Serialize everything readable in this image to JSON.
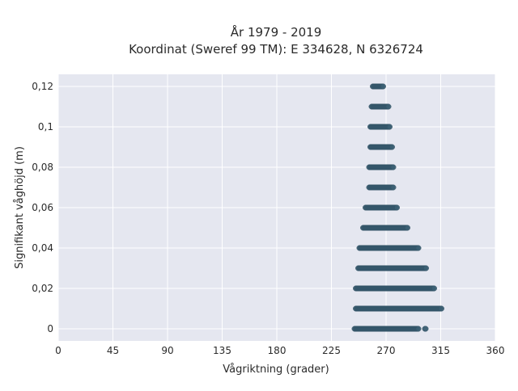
{
  "chart_data": {
    "type": "scatter",
    "title": "År 1979 - 2019",
    "subtitle": "Koordinat (Sweref 99 TM): E 334628, N 6326724",
    "xlabel": "Vågriktning (grader)",
    "ylabel": "Signifikant våghöjd (m)",
    "xlim": [
      0,
      360
    ],
    "ylim": [
      -0.006,
      0.126
    ],
    "xticks": [
      0,
      45,
      90,
      135,
      180,
      225,
      270,
      315,
      360
    ],
    "xtick_labels": [
      "0",
      "45",
      "90",
      "135",
      "180",
      "225",
      "270",
      "315",
      "360"
    ],
    "yticks": [
      0,
      0.02,
      0.04,
      0.06,
      0.08,
      0.1,
      0.12
    ],
    "ytick_labels": [
      "0",
      "0,02",
      "0,04",
      "0,06",
      "0,08",
      "0,1",
      "0,12"
    ],
    "grid": true,
    "background": "#e5e7f0",
    "marker_color": "#3b5f73",
    "series": [
      {
        "points": [
          {
            "height": 0.0,
            "direction_min": 244,
            "direction_max": 297
          },
          {
            "height": 0.0,
            "direction_min": 302,
            "direction_max": 303
          },
          {
            "height": 0.01,
            "direction_min": 245,
            "direction_max": 316
          },
          {
            "height": 0.02,
            "direction_min": 245,
            "direction_max": 310
          },
          {
            "height": 0.03,
            "direction_min": 247,
            "direction_max": 303
          },
          {
            "height": 0.04,
            "direction_min": 248,
            "direction_max": 297
          },
          {
            "height": 0.05,
            "direction_min": 251,
            "direction_max": 288
          },
          {
            "height": 0.06,
            "direction_min": 253,
            "direction_max": 279
          },
          {
            "height": 0.07,
            "direction_min": 256,
            "direction_max": 276
          },
          {
            "height": 0.08,
            "direction_min": 256,
            "direction_max": 276
          },
          {
            "height": 0.09,
            "direction_min": 257,
            "direction_max": 275
          },
          {
            "height": 0.1,
            "direction_min": 257,
            "direction_max": 273
          },
          {
            "height": 0.11,
            "direction_min": 258,
            "direction_max": 272
          },
          {
            "height": 0.12,
            "direction_min": 259,
            "direction_max": 268
          }
        ]
      }
    ]
  }
}
